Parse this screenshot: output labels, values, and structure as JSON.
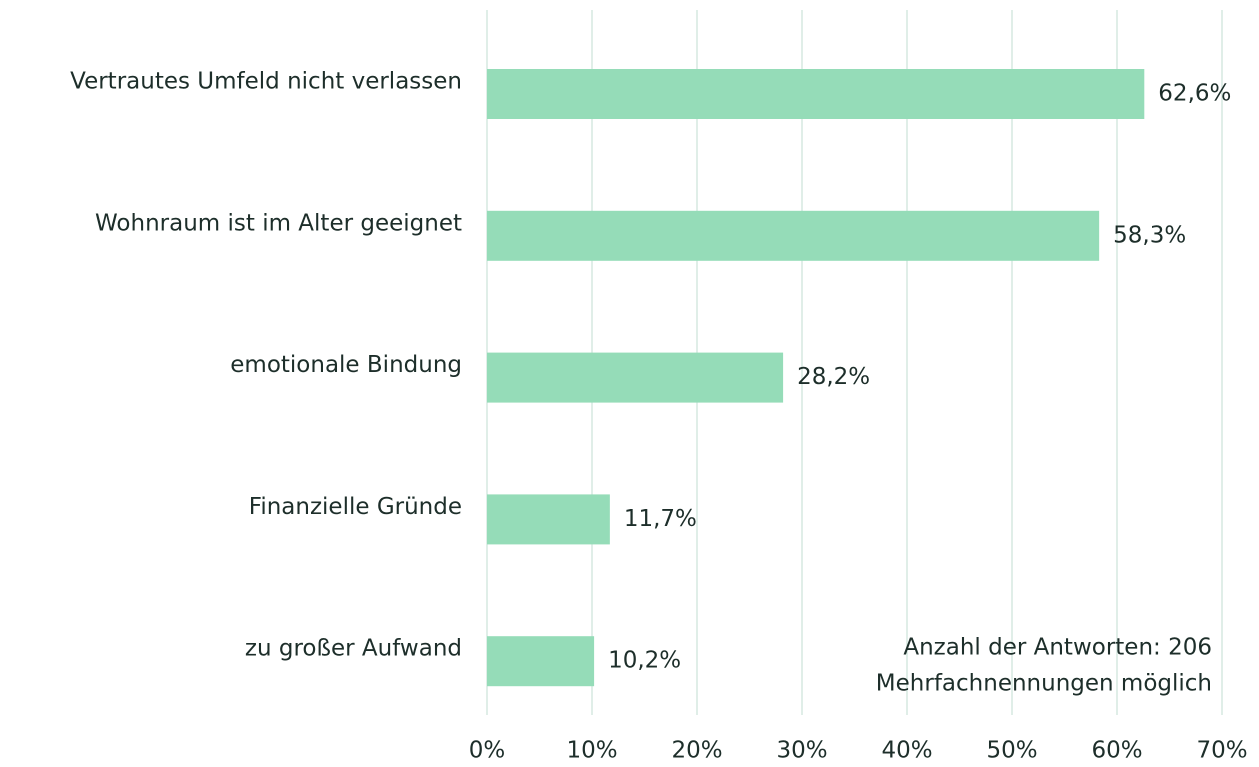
{
  "chart_data": {
    "type": "bar",
    "orientation": "horizontal",
    "categories": [
      "Vertrautes Umfeld nicht verlassen",
      "Wohnraum ist im Alter geeignet",
      "emotionale Bindung",
      "Finanzielle Gründe",
      "zu großer Aufwand"
    ],
    "values": [
      62.6,
      58.3,
      28.2,
      11.7,
      10.2
    ],
    "value_labels": [
      "62,6%",
      "58,3%",
      "28,2%",
      "11,7%",
      "10,2%"
    ],
    "color": "#95dcb8",
    "xlim": [
      0,
      70
    ],
    "xticks": [
      {
        "value": 0,
        "label": "0%"
      },
      {
        "value": 10,
        "label": "10%"
      },
      {
        "value": 20,
        "label": "20%"
      },
      {
        "value": 30,
        "label": "30%"
      },
      {
        "value": 40,
        "label": "40%"
      },
      {
        "value": 50,
        "label": "50%"
      },
      {
        "value": 60,
        "label": "60%"
      },
      {
        "value": 70,
        "label": "70%"
      }
    ],
    "grid": true,
    "annotations": [
      "Anzahl der Antworten: 206",
      "Mehrfachnennungen möglich"
    ]
  }
}
